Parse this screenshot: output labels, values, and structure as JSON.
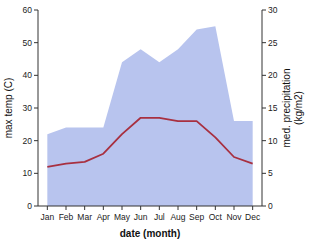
{
  "chart_data": {
    "type": "line",
    "categories": [
      "Jan",
      "Feb",
      "Mar",
      "Apr",
      "May",
      "Jun",
      "Jul",
      "Aug",
      "Sep",
      "Oct",
      "Nov",
      "Dec"
    ],
    "series": [
      {
        "type": "area",
        "axis": "y2",
        "color": "#b8c4ee",
        "values": [
          11,
          12,
          12,
          12,
          22,
          24,
          22,
          24,
          27,
          27.5,
          13,
          13
        ]
      },
      {
        "type": "line",
        "color": "#a83040",
        "values": [
          12,
          13,
          13.5,
          16,
          22,
          27,
          27,
          26,
          26,
          21,
          15,
          13
        ]
      }
    ],
    "xlabel": "date (month)",
    "ylabel": "max temp (C)",
    "y2label": "med. precipitation\n(kg/m2)",
    "ylim": [
      0,
      60
    ],
    "yticks": [
      0,
      10,
      20,
      30,
      40,
      50,
      60
    ],
    "y2lim": [
      0,
      30
    ],
    "y2ticks": [
      0,
      5,
      10,
      15,
      20,
      25,
      30
    ],
    "grid": false
  }
}
